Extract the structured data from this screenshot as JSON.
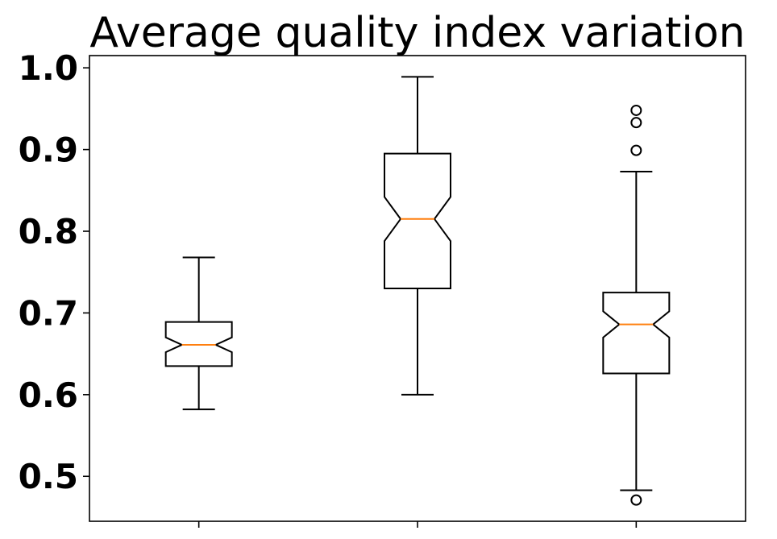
{
  "chart_data": {
    "type": "box",
    "title": "Average quality index variation",
    "xlabel": "",
    "ylabel": "",
    "ylim": [
      0.445,
      1.015
    ],
    "yticks": [
      "0.5",
      "0.6",
      "0.7",
      "0.8",
      "0.9",
      "1.0"
    ],
    "notched": true,
    "grid": false,
    "colors": {
      "box": "#000000",
      "median": "#ff7f0e",
      "background": "#ffffff"
    },
    "boxes": [
      {
        "whisker_low": 0.582,
        "q1": 0.635,
        "median": 0.661,
        "q3": 0.689,
        "whisker_high": 0.768,
        "notch_low": 0.652,
        "notch_high": 0.67,
        "outliers": []
      },
      {
        "whisker_low": 0.6,
        "q1": 0.73,
        "median": 0.815,
        "q3": 0.895,
        "whisker_high": 0.989,
        "notch_low": 0.788,
        "notch_high": 0.842,
        "outliers": []
      },
      {
        "whisker_low": 0.483,
        "q1": 0.626,
        "median": 0.686,
        "q3": 0.725,
        "whisker_high": 0.873,
        "notch_low": 0.67,
        "notch_high": 0.702,
        "outliers": [
          0.471,
          0.899,
          0.933,
          0.948
        ]
      }
    ]
  }
}
